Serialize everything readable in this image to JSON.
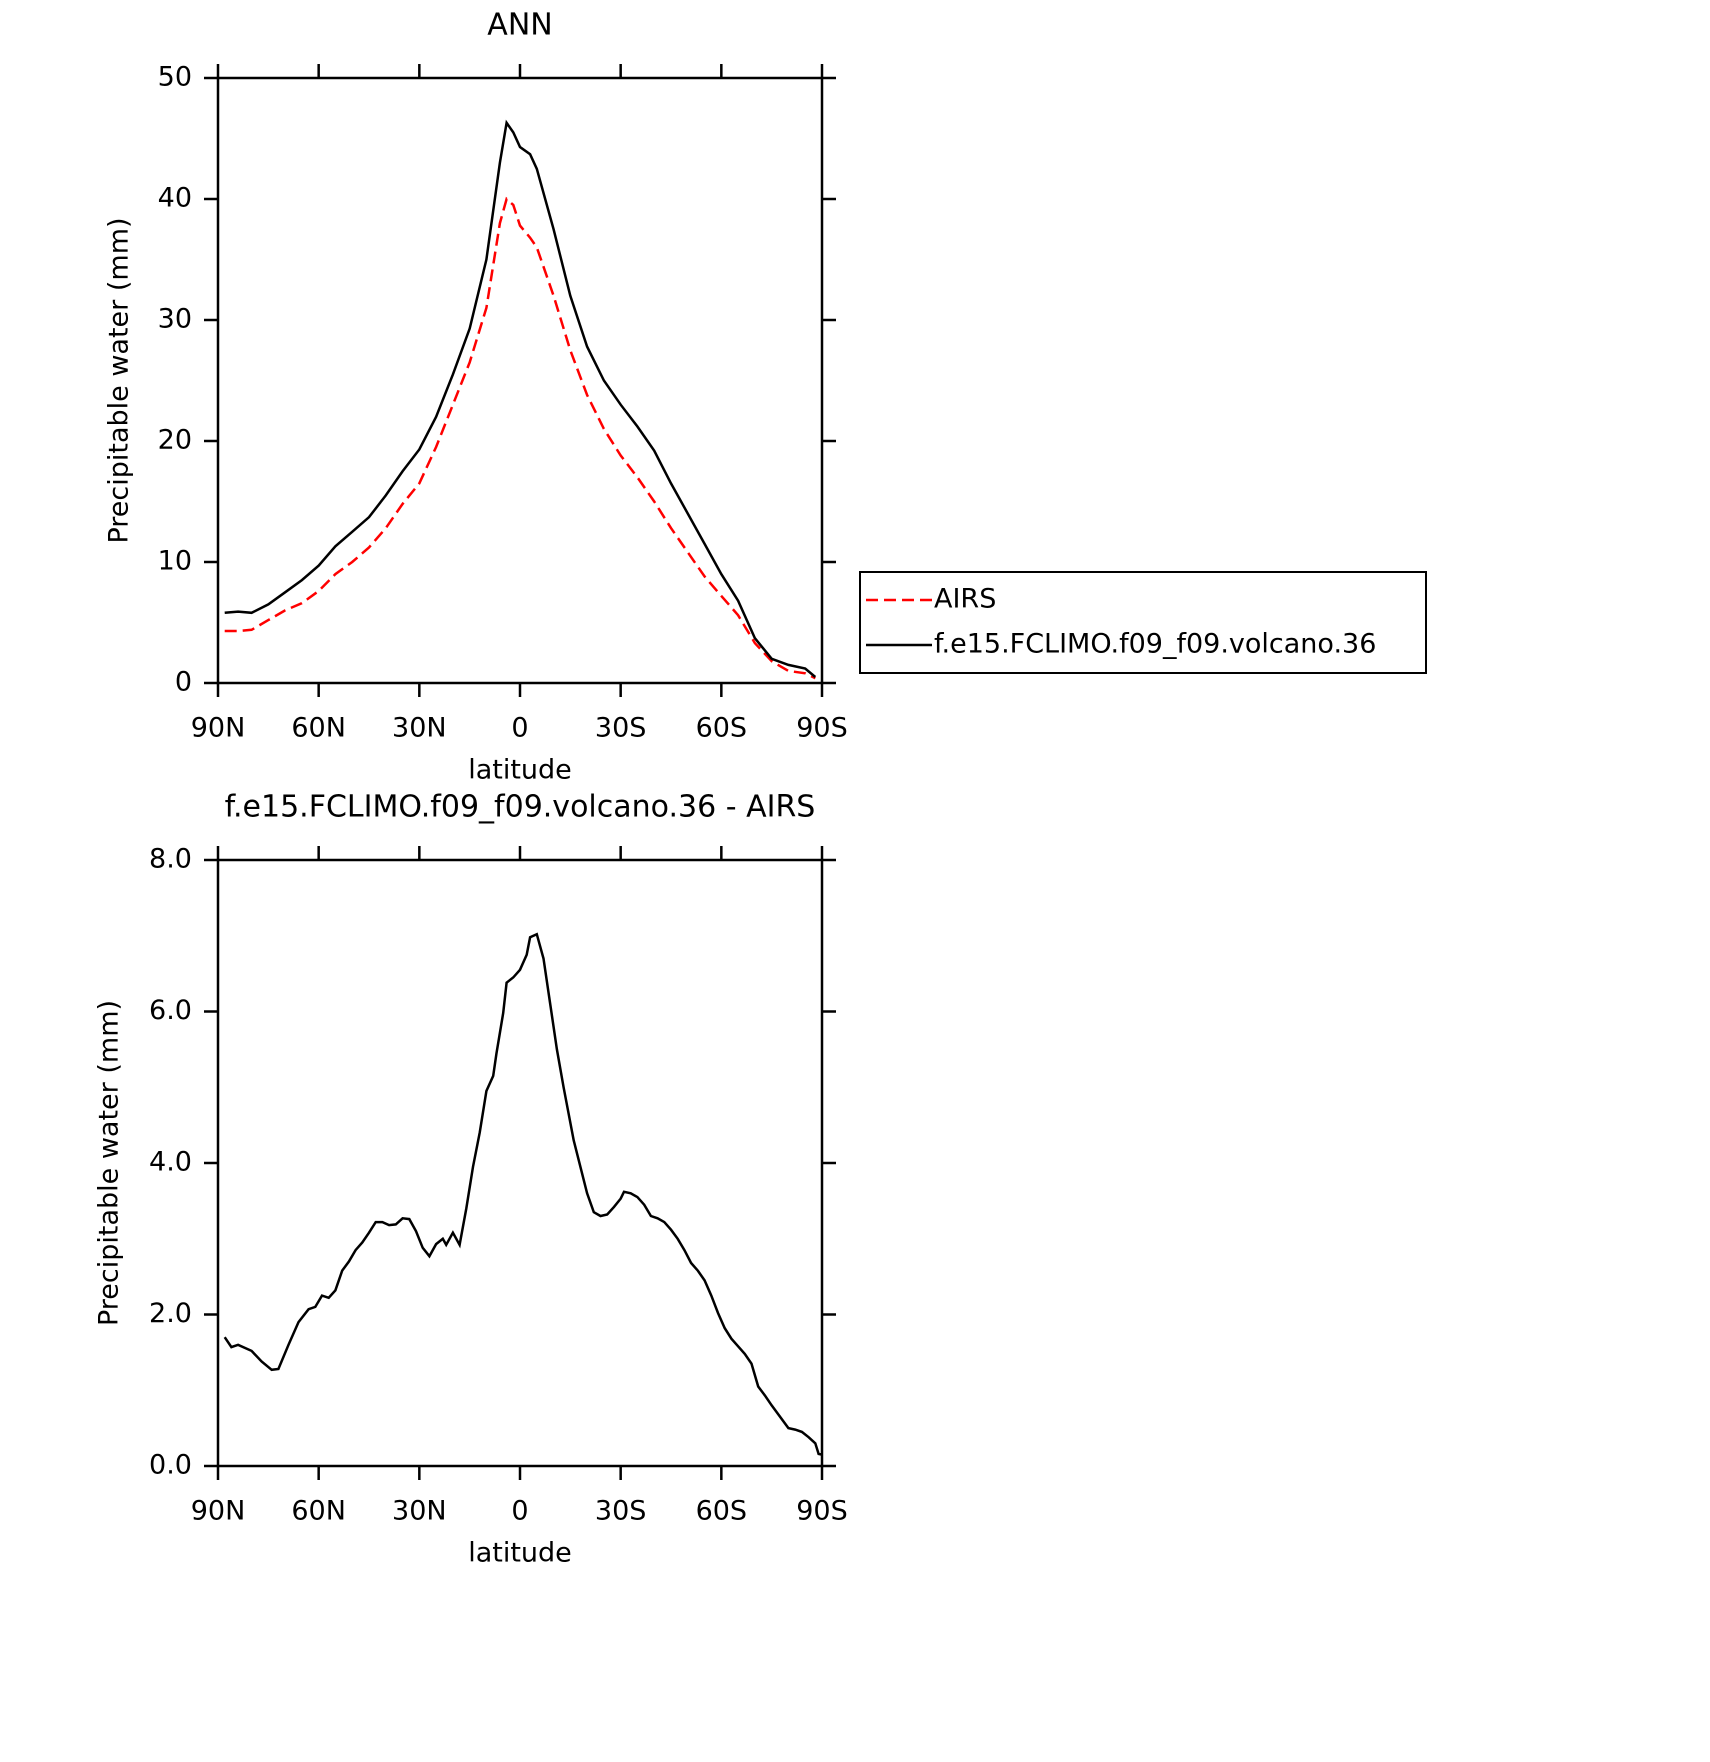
{
  "chart_data": [
    {
      "type": "line",
      "title": "ANN",
      "x_label": "latitude",
      "y_label": "Precipitable water (mm)",
      "x": [
        88,
        84,
        80,
        75,
        70,
        65,
        60,
        55,
        50,
        45,
        40,
        35,
        30,
        25,
        20,
        15,
        10,
        6,
        4,
        2,
        0,
        -3,
        -5,
        -10,
        -15,
        -20,
        -25,
        -30,
        -35,
        -40,
        -45,
        -50,
        -55,
        -60,
        -65,
        -70,
        -75,
        -80,
        -85,
        -88
      ],
      "series": [
        {
          "name": "AIRS",
          "color": "#ff0000",
          "line_style": "dashed",
          "values": [
            4.3,
            4.3,
            4.4,
            5.2,
            6.0,
            6.6,
            7.6,
            9.0,
            10.0,
            11.2,
            12.8,
            14.8,
            16.5,
            19.5,
            23.0,
            26.5,
            31.0,
            38.0,
            40.0,
            39.5,
            37.8,
            36.8,
            36.0,
            32.0,
            27.5,
            23.8,
            21.0,
            18.8,
            17.0,
            15.0,
            12.8,
            10.8,
            8.8,
            7.2,
            5.6,
            3.3,
            1.8,
            1.0,
            0.8,
            0.4
          ]
        },
        {
          "name": "f.e15.FCLIMO.f09_f09.volcano.36",
          "color": "#000000",
          "line_style": "solid",
          "values": [
            5.8,
            5.9,
            5.8,
            6.5,
            7.5,
            8.5,
            9.7,
            11.3,
            12.5,
            13.7,
            15.5,
            17.5,
            19.3,
            22.0,
            25.5,
            29.3,
            35.0,
            43.0,
            46.3,
            45.5,
            44.3,
            43.7,
            42.5,
            37.5,
            32.0,
            27.8,
            25.0,
            23.0,
            21.2,
            19.2,
            16.5,
            14.0,
            11.5,
            9.0,
            6.8,
            3.7,
            2.0,
            1.5,
            1.2,
            0.5
          ]
        }
      ],
      "xlim": [
        90,
        -90
      ],
      "xticks": [
        {
          "value": 90,
          "label": "90N"
        },
        {
          "value": 60,
          "label": "60N"
        },
        {
          "value": 30,
          "label": "30N"
        },
        0,
        {
          "value": -30,
          "label": "30S"
        },
        {
          "value": -60,
          "label": "60S"
        },
        {
          "value": -90,
          "label": "90S"
        }
      ],
      "ylim": [
        0,
        50
      ],
      "yticks": [
        0,
        10,
        20,
        30,
        40,
        50
      ],
      "legend": "right"
    },
    {
      "type": "line",
      "title": "f.e15.FCLIMO.f09_f09.volcano.36 - AIRS",
      "x_label": "latitude",
      "y_label": "Precipitable water (mm)",
      "x": [
        88,
        86,
        84,
        80,
        77,
        74,
        72,
        69,
        66,
        63,
        61,
        59,
        57,
        55,
        53,
        51,
        49,
        47,
        45,
        43,
        41,
        39,
        37,
        35,
        33,
        31,
        29,
        27,
        25,
        23,
        22,
        20,
        18,
        16,
        14,
        12,
        10,
        8,
        7,
        5,
        4,
        2,
        0,
        -2,
        -3,
        -5,
        -7,
        -9,
        -11,
        -13,
        -16,
        -18,
        -20,
        -22,
        -24,
        -26,
        -28,
        -30,
        -31,
        -33,
        -35,
        -37,
        -39,
        -41,
        -43,
        -45,
        -47,
        -49,
        -51,
        -53,
        -55,
        -57,
        -59,
        -61,
        -63,
        -65,
        -67,
        -69,
        -71,
        -73,
        -75,
        -77,
        -80,
        -82,
        -84,
        -86,
        -88,
        -89,
        -90
      ],
      "values": [
        1.7,
        1.57,
        1.6,
        1.52,
        1.38,
        1.27,
        1.28,
        1.6,
        1.9,
        2.07,
        2.1,
        2.25,
        2.22,
        2.32,
        2.58,
        2.7,
        2.85,
        2.95,
        3.08,
        3.22,
        3.22,
        3.18,
        3.19,
        3.27,
        3.26,
        3.1,
        2.88,
        2.77,
        2.93,
        3.0,
        2.92,
        3.08,
        2.92,
        3.4,
        3.95,
        4.4,
        4.95,
        5.15,
        5.45,
        5.98,
        6.38,
        6.45,
        6.55,
        6.75,
        6.98,
        7.02,
        6.7,
        6.1,
        5.5,
        5.0,
        4.3,
        3.95,
        3.6,
        3.35,
        3.3,
        3.32,
        3.42,
        3.53,
        3.62,
        3.6,
        3.55,
        3.45,
        3.3,
        3.27,
        3.22,
        3.12,
        3.0,
        2.85,
        2.68,
        2.58,
        2.45,
        2.25,
        2.02,
        1.82,
        1.68,
        1.58,
        1.48,
        1.35,
        1.05,
        0.93,
        0.8,
        0.68,
        0.5,
        0.48,
        0.45,
        0.38,
        0.3,
        0.16,
        0.15
      ],
      "color": "#000000",
      "xlim": [
        90,
        -90
      ],
      "xticks": [
        {
          "value": 90,
          "label": "90N"
        },
        {
          "value": 60,
          "label": "60N"
        },
        {
          "value": 30,
          "label": "30N"
        },
        0,
        {
          "value": -30,
          "label": "30S"
        },
        {
          "value": -60,
          "label": "60S"
        },
        {
          "value": -90,
          "label": "90S"
        }
      ],
      "ylim": [
        0,
        8
      ],
      "yticks": [
        {
          "value": 0,
          "label": "0.0"
        },
        {
          "value": 2,
          "label": "2.0"
        },
        {
          "value": 4,
          "label": "4.0"
        },
        {
          "value": 6,
          "label": "6.0"
        },
        {
          "value": 8,
          "label": "8.0"
        }
      ]
    }
  ]
}
